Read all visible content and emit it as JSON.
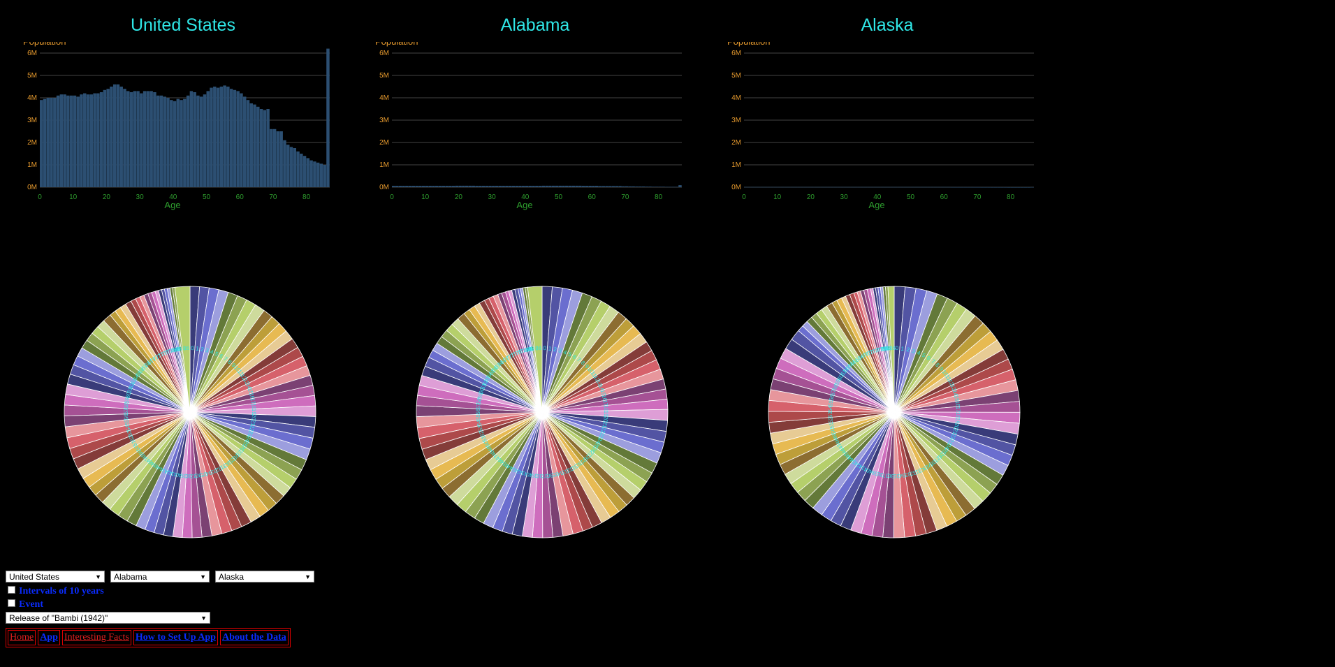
{
  "panels": [
    {
      "title": "United States",
      "ylabel": "Population",
      "xlabel": "Age"
    },
    {
      "title": "Alabama",
      "ylabel": "Population",
      "xlabel": "Age"
    },
    {
      "title": "Alaska",
      "ylabel": "Population",
      "xlabel": "Age"
    }
  ],
  "chart_data": [
    {
      "type": "bar",
      "title": "United States",
      "xlabel": "Age",
      "ylabel": "Population",
      "ylim": [
        0,
        6000000
      ],
      "xlim": [
        0,
        86
      ],
      "y_ticks": [
        "0M",
        "1M",
        "2M",
        "3M",
        "4M",
        "5M",
        "6M"
      ],
      "x_ticks": [
        "0",
        "10",
        "20",
        "30",
        "40",
        "50",
        "60",
        "70",
        "80"
      ],
      "color": "#2c4f72",
      "values": [
        3.9,
        3.95,
        4.0,
        4.0,
        4.0,
        4.1,
        4.15,
        4.15,
        4.1,
        4.1,
        4.1,
        4.05,
        4.15,
        4.2,
        4.15,
        4.15,
        4.2,
        4.2,
        4.25,
        4.35,
        4.4,
        4.5,
        4.6,
        4.6,
        4.5,
        4.4,
        4.3,
        4.25,
        4.3,
        4.3,
        4.2,
        4.3,
        4.3,
        4.3,
        4.25,
        4.1,
        4.1,
        4.05,
        4.0,
        3.9,
        3.85,
        3.95,
        3.9,
        3.95,
        4.1,
        4.3,
        4.25,
        4.1,
        4.05,
        4.15,
        4.3,
        4.45,
        4.5,
        4.45,
        4.5,
        4.55,
        4.5,
        4.4,
        4.35,
        4.3,
        4.2,
        4.05,
        3.9,
        3.75,
        3.7,
        3.6,
        3.5,
        3.45,
        3.5,
        2.6,
        2.6,
        2.5,
        2.5,
        2.1,
        1.9,
        1.8,
        1.75,
        1.6,
        1.5,
        1.4,
        1.3,
        1.2,
        1.15,
        1.1,
        1.05,
        1.0,
        6.2
      ]
    },
    {
      "type": "bar",
      "title": "Alabama",
      "xlabel": "Age",
      "ylabel": "Population",
      "ylim": [
        0,
        6000000
      ],
      "xlim": [
        0,
        86
      ],
      "y_ticks": [
        "0M",
        "1M",
        "2M",
        "3M",
        "4M",
        "5M",
        "6M"
      ],
      "x_ticks": [
        "0",
        "10",
        "20",
        "30",
        "40",
        "50",
        "60",
        "70",
        "80"
      ],
      "color": "#2c4f72",
      "values": [
        0.06,
        0.06,
        0.06,
        0.06,
        0.06,
        0.06,
        0.06,
        0.06,
        0.06,
        0.06,
        0.06,
        0.06,
        0.06,
        0.06,
        0.06,
        0.06,
        0.06,
        0.06,
        0.06,
        0.065,
        0.065,
        0.065,
        0.065,
        0.065,
        0.065,
        0.06,
        0.06,
        0.06,
        0.06,
        0.06,
        0.06,
        0.06,
        0.06,
        0.06,
        0.06,
        0.06,
        0.06,
        0.06,
        0.06,
        0.06,
        0.06,
        0.06,
        0.06,
        0.06,
        0.06,
        0.065,
        0.065,
        0.065,
        0.065,
        0.065,
        0.065,
        0.065,
        0.065,
        0.065,
        0.065,
        0.065,
        0.065,
        0.06,
        0.06,
        0.06,
        0.06,
        0.06,
        0.05,
        0.05,
        0.05,
        0.05,
        0.05,
        0.05,
        0.05,
        0.04,
        0.04,
        0.035,
        0.035,
        0.03,
        0.03,
        0.03,
        0.025,
        0.025,
        0.02,
        0.02,
        0.02,
        0.02,
        0.015,
        0.015,
        0.015,
        0.015,
        0.09
      ]
    },
    {
      "type": "bar",
      "title": "Alaska",
      "xlabel": "Age",
      "ylabel": "Population",
      "ylim": [
        0,
        6000000
      ],
      "xlim": [
        0,
        86
      ],
      "y_ticks": [
        "0M",
        "1M",
        "2M",
        "3M",
        "4M",
        "5M",
        "6M"
      ],
      "x_ticks": [
        "0",
        "10",
        "20",
        "30",
        "40",
        "50",
        "60",
        "70",
        "80"
      ],
      "color": "#2c4f72",
      "values": [
        0.01,
        0.01,
        0.01,
        0.01,
        0.01,
        0.01,
        0.01,
        0.01,
        0.01,
        0.01,
        0.01,
        0.01,
        0.01,
        0.01,
        0.01,
        0.01,
        0.01,
        0.01,
        0.01,
        0.01,
        0.01,
        0.01,
        0.01,
        0.01,
        0.01,
        0.01,
        0.01,
        0.01,
        0.01,
        0.01,
        0.01,
        0.01,
        0.01,
        0.01,
        0.01,
        0.01,
        0.01,
        0.01,
        0.01,
        0.01,
        0.01,
        0.01,
        0.01,
        0.01,
        0.01,
        0.01,
        0.01,
        0.01,
        0.01,
        0.01,
        0.01,
        0.01,
        0.01,
        0.01,
        0.01,
        0.01,
        0.01,
        0.01,
        0.01,
        0.01,
        0.01,
        0.01,
        0.005,
        0.005,
        0.005,
        0.005,
        0.005,
        0.005,
        0.005,
        0.004,
        0.004,
        0.003,
        0.003,
        0.003,
        0.002,
        0.002,
        0.002,
        0.002,
        0.002,
        0.001,
        0.001,
        0.001,
        0.001,
        0.001,
        0.001,
        0.001,
        0.005
      ]
    },
    {
      "type": "pie",
      "panel": "United States",
      "note_labels": "slice labels are ages 0-86 drawn in cyan around inner ring",
      "palette": [
        "#393b79",
        "#5254a3",
        "#6b6ecf",
        "#9c9ede",
        "#637939",
        "#8ca252",
        "#b5cf6b",
        "#cedb9c",
        "#8c6d31",
        "#bd9e39",
        "#e7ba52",
        "#e7cb94",
        "#843c39",
        "#ad494a",
        "#d6616b",
        "#e7969c",
        "#7b4173",
        "#a55194",
        "#ce6dbd",
        "#de9ed6"
      ]
    },
    {
      "type": "pie",
      "panel": "Alabama",
      "palette": [
        "#393b79",
        "#5254a3",
        "#6b6ecf",
        "#9c9ede",
        "#637939",
        "#8ca252",
        "#b5cf6b",
        "#cedb9c",
        "#8c6d31",
        "#bd9e39",
        "#e7ba52",
        "#e7cb94",
        "#843c39",
        "#ad494a",
        "#d6616b",
        "#e7969c",
        "#7b4173",
        "#a55194",
        "#ce6dbd",
        "#de9ed6"
      ]
    },
    {
      "type": "pie",
      "panel": "Alaska",
      "palette": [
        "#393b79",
        "#5254a3",
        "#6b6ecf",
        "#9c9ede",
        "#637939",
        "#8ca252",
        "#b5cf6b",
        "#cedb9c",
        "#8c6d31",
        "#bd9e39",
        "#e7ba52",
        "#e7cb94",
        "#843c39",
        "#ad494a",
        "#d6616b",
        "#e7969c",
        "#7b4173",
        "#a55194",
        "#ce6dbd",
        "#de9ed6"
      ]
    }
  ],
  "controls": {
    "select1": "United States",
    "select2": "Alabama",
    "select3": "Alaska",
    "checkbox_intervals": "Intervals of 10 years",
    "checkbox_event": "Event",
    "event_select": "Release of \"Bambi (1942)\""
  },
  "nav": [
    "Home",
    "App",
    "Interesting Facts",
    "How to Set Up App",
    "About the Data"
  ],
  "colors": {
    "title": "#2fe6e6",
    "axis_label": "#e69a2e",
    "x_label": "#2e9e2e",
    "bar": "#2c4f72",
    "nav_border": "#dd0000",
    "link": "#0a2cff"
  }
}
